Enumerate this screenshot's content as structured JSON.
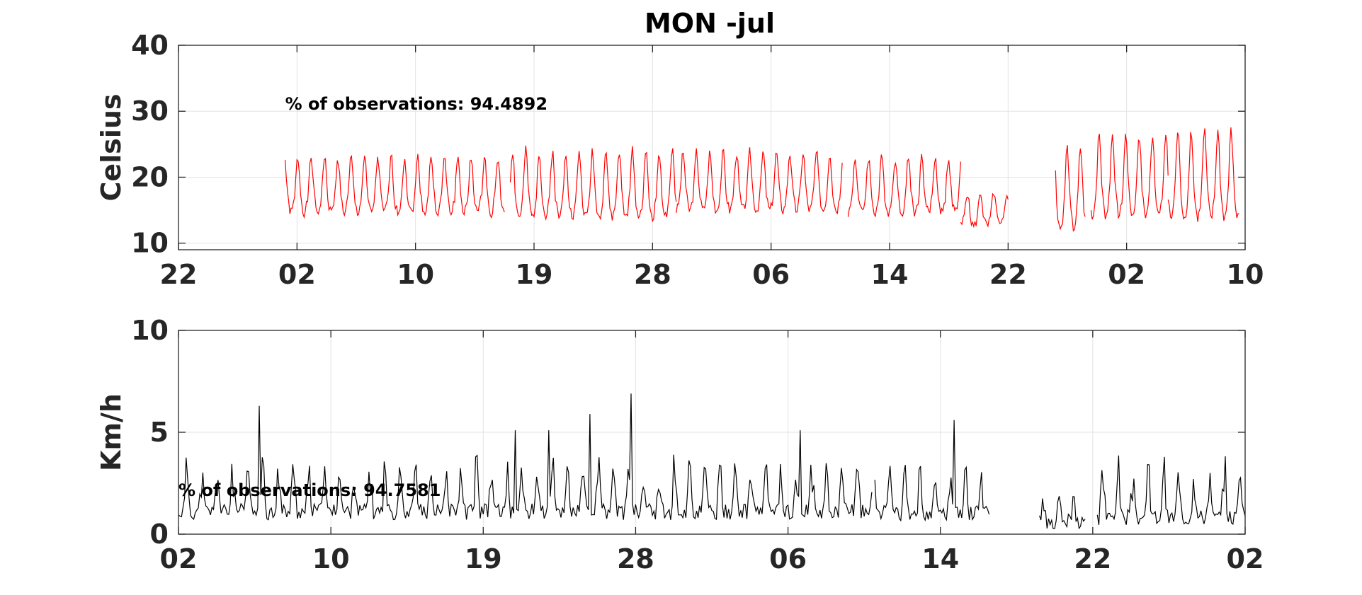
{
  "figure": {
    "title": "MON -jul"
  },
  "chart_data": [
    {
      "type": "line",
      "title": "MON -jul",
      "ylabel": "Celsius",
      "xlabel": "",
      "ylim": [
        9,
        40
      ],
      "yticks": [
        10,
        20,
        30,
        40
      ],
      "xlim": [
        0,
        90
      ],
      "xticks": [
        0,
        10,
        20,
        30,
        40,
        50,
        60,
        70,
        80,
        90
      ],
      "xticklabels": [
        "22",
        "02",
        "10",
        "19",
        "28",
        "06",
        "14",
        "22",
        "02",
        "10"
      ],
      "grid": true,
      "annotation": {
        "text": "% of observations: 94.4892",
        "x": 9,
        "y": 30
      },
      "series": [
        {
          "color": "#ff0000",
          "segments": [
            {
              "start": 9,
              "end": 27.5,
              "base": 13.5,
              "amp": 9.5,
              "phase": 0.3,
              "seed": 1
            },
            {
              "start": 28,
              "end": 42,
              "base": 12.5,
              "amp": 11.5,
              "phase": 0.2,
              "seed": 2
            },
            {
              "start": 42,
              "end": 56,
              "base": 13.8,
              "amp": 10,
              "phase": 0.4,
              "seed": 3
            },
            {
              "start": 56.5,
              "end": 66,
              "base": 13.5,
              "amp": 9.5,
              "phase": 0.5,
              "seed": 4
            },
            {
              "start": 66,
              "end": 70,
              "base": 11.8,
              "amp": 6,
              "phase": 0.1,
              "seed": 5
            },
            {
              "start": 74,
              "end": 76.5,
              "base": 10.5,
              "amp": 14,
              "phase": 0.6,
              "seed": 6
            },
            {
              "start": 77,
              "end": 83.5,
              "base": 12.5,
              "amp": 14,
              "phase": 0.2,
              "seed": 7
            },
            {
              "start": 83.5,
              "end": 89.5,
              "base": 12,
              "amp": 15,
              "phase": 0.3,
              "seed": 8
            }
          ]
        }
      ]
    },
    {
      "type": "line",
      "title": "",
      "ylabel": "Km/h",
      "xlabel": "",
      "ylim": [
        0,
        10
      ],
      "yticks": [
        0,
        5,
        10
      ],
      "xlim": [
        0,
        70
      ],
      "xticks": [
        0,
        10,
        20,
        30,
        40,
        50,
        60,
        70
      ],
      "xticklabels": [
        "02",
        "10",
        "19",
        "28",
        "06",
        "14",
        "22",
        "02"
      ],
      "grid": true,
      "annotation": {
        "text": "% of observations: 94.7581",
        "x": 0,
        "y": 1.8
      },
      "series": [
        {
          "color": "#000000",
          "segments": [
            {
              "start": 0,
              "end": 45.5,
              "base": 1.1,
              "amp": 2.8,
              "phase": 0.7,
              "seed": 11
            },
            {
              "start": 45.7,
              "end": 53.2,
              "base": 1.0,
              "amp": 2.6,
              "phase": 0.6,
              "seed": 12
            },
            {
              "start": 56.5,
              "end": 59.5,
              "base": 0.6,
              "amp": 1.6,
              "phase": 0.5,
              "seed": 13
            },
            {
              "start": 60.3,
              "end": 70,
              "base": 0.8,
              "amp": 3.0,
              "phase": 0.6,
              "seed": 14
            }
          ],
          "peaks": [
            [
              5.3,
              6.3
            ],
            [
              29.7,
              6.9
            ],
            [
              27.0,
              5.9
            ],
            [
              40.8,
              5.1
            ],
            [
              50.9,
              5.6
            ],
            [
              24.3,
              5.1
            ],
            [
              22.1,
              5.1
            ]
          ]
        }
      ]
    }
  ]
}
